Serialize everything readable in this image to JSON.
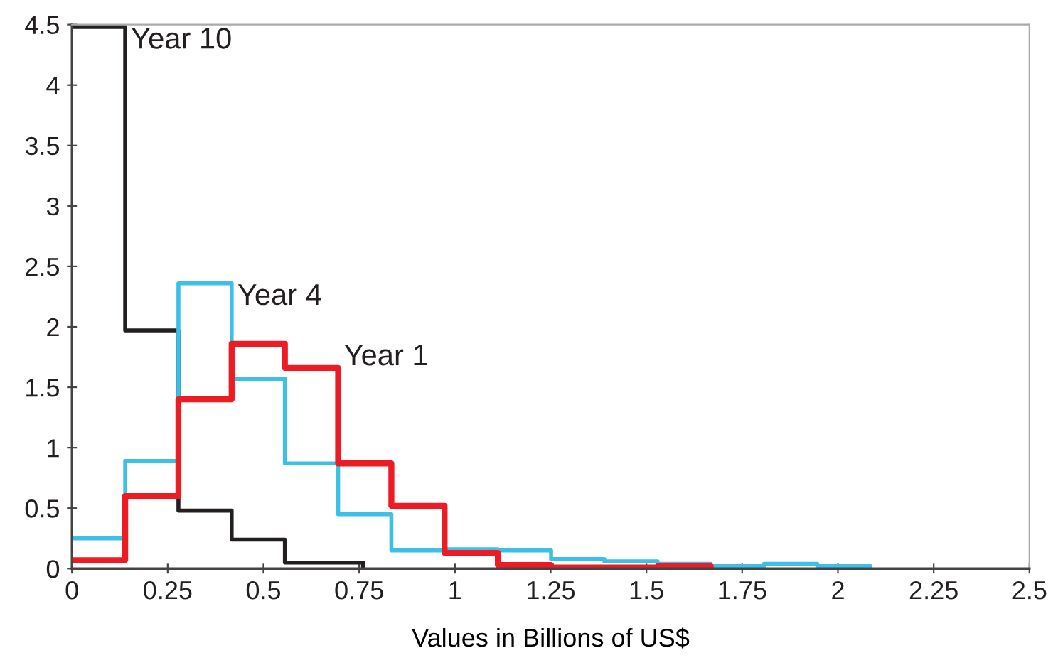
{
  "chart_data": {
    "type": "step",
    "xlabel": "Values in Billions of US$",
    "xlim": [
      0,
      2.5
    ],
    "xticks": [
      0,
      0.25,
      0.5,
      0.75,
      1,
      1.25,
      1.5,
      1.75,
      2,
      2.25,
      2.5
    ],
    "ylim": [
      0,
      4.5
    ],
    "yticks": [
      0,
      0.5,
      1,
      1.5,
      2,
      2.5,
      3,
      3.5,
      4,
      4.5
    ],
    "series": [
      {
        "name": "Year 10",
        "color": "#231f20",
        "x": [
          0,
          0.139,
          0.278,
          0.417,
          0.556,
          0.76
        ],
        "values": [
          4.48,
          1.97,
          0.48,
          0.24,
          0.05,
          0
        ]
      },
      {
        "name": "Year 4",
        "color": "#3cc0e8",
        "x": [
          0,
          0.139,
          0.278,
          0.417,
          0.556,
          0.695,
          0.834,
          0.973,
          1.112,
          1.251,
          1.39,
          1.529,
          1.668,
          1.807,
          1.946,
          2.085
        ],
        "values": [
          0.25,
          0.89,
          2.36,
          1.57,
          0.87,
          0.45,
          0.15,
          0.16,
          0.15,
          0.08,
          0.06,
          0.04,
          0.02,
          0.04,
          0.02,
          0
        ]
      },
      {
        "name": "Year 1",
        "color": "#ed1c24",
        "x": [
          0,
          0.139,
          0.278,
          0.417,
          0.556,
          0.695,
          0.834,
          0.973,
          1.112,
          1.251,
          1.39,
          1.529,
          1.668
        ],
        "values": [
          0.07,
          0.6,
          1.4,
          1.86,
          1.66,
          0.87,
          0.52,
          0.13,
          0.03,
          0.01,
          0.01,
          0.02,
          0
        ]
      }
    ]
  }
}
